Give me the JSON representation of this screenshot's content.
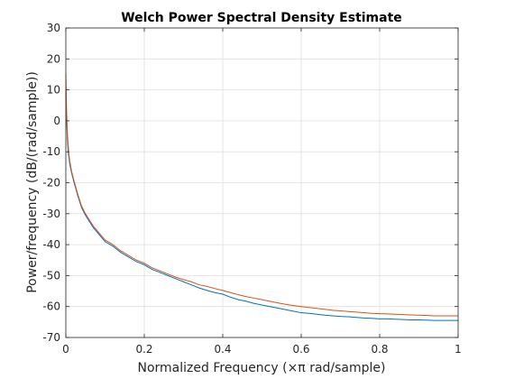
{
  "chart_data": {
    "type": "line",
    "title": "Welch Power Spectral Density Estimate",
    "xlabel": "Normalized Frequency  (×π rad/sample)",
    "ylabel": "Power/frequency (dB/(rad/sample))",
    "xlim": [
      0,
      1
    ],
    "ylim": [
      -70,
      30
    ],
    "xticks": [
      0,
      0.2,
      0.4,
      0.6,
      0.8,
      1
    ],
    "xtick_labels": [
      "0",
      "0.2",
      "0.4",
      "0.6",
      "0.8",
      "1"
    ],
    "yticks": [
      -70,
      -60,
      -50,
      -40,
      -30,
      -20,
      -10,
      0,
      10,
      20,
      30
    ],
    "ytick_labels": [
      "-70",
      "-60",
      "-50",
      "-40",
      "-30",
      "-20",
      "-10",
      "0",
      "10",
      "20",
      "30"
    ],
    "grid": true,
    "legend": "none",
    "series": [
      {
        "color": "#0072BD",
        "x": [
          0,
          0.002,
          0.004,
          0.006,
          0.008,
          0.01,
          0.015,
          0.02,
          0.03,
          0.04,
          0.05,
          0.06,
          0.07,
          0.08,
          0.09,
          0.1,
          0.12,
          0.14,
          0.16,
          0.18,
          0.2,
          0.22,
          0.24,
          0.26,
          0.28,
          0.3,
          0.32,
          0.34,
          0.36,
          0.38,
          0.4,
          0.42,
          0.44,
          0.46,
          0.48,
          0.5,
          0.52,
          0.54,
          0.56,
          0.58,
          0.6,
          0.62,
          0.64,
          0.66,
          0.68,
          0.7,
          0.72,
          0.74,
          0.76,
          0.78,
          0.8,
          0.82,
          0.84,
          0.86,
          0.88,
          0.9,
          0.92,
          0.94,
          0.96,
          0.98,
          1.0
        ],
        "y": [
          10,
          0,
          -6,
          -10,
          -12,
          -14,
          -17,
          -19.5,
          -24,
          -28,
          -30.5,
          -32.5,
          -34.5,
          -36,
          -37.5,
          -39,
          -40.5,
          -42.5,
          -44,
          -45.5,
          -46.5,
          -48,
          -49,
          -50,
          -51,
          -52,
          -53,
          -54,
          -54.8,
          -55.5,
          -56,
          -57,
          -57.8,
          -58.3,
          -59,
          -59.5,
          -60,
          -60.5,
          -61,
          -61.5,
          -62,
          -62.2,
          -62.5,
          -62.8,
          -63,
          -63.2,
          -63.3,
          -63.5,
          -63.7,
          -63.8,
          -64,
          -64,
          -64.1,
          -64.2,
          -64.3,
          -64.3,
          -64.4,
          -64.5,
          -64.5,
          -64.5,
          -64.5
        ]
      },
      {
        "color": "#D95319",
        "x": [
          0,
          0.002,
          0.004,
          0.006,
          0.008,
          0.01,
          0.015,
          0.02,
          0.03,
          0.04,
          0.05,
          0.06,
          0.07,
          0.08,
          0.09,
          0.1,
          0.12,
          0.14,
          0.16,
          0.18,
          0.2,
          0.22,
          0.24,
          0.26,
          0.28,
          0.3,
          0.32,
          0.34,
          0.36,
          0.38,
          0.4,
          0.42,
          0.44,
          0.46,
          0.48,
          0.5,
          0.52,
          0.54,
          0.56,
          0.58,
          0.6,
          0.62,
          0.64,
          0.66,
          0.68,
          0.7,
          0.72,
          0.74,
          0.76,
          0.78,
          0.8,
          0.82,
          0.84,
          0.86,
          0.88,
          0.9,
          0.92,
          0.94,
          0.96,
          0.98,
          1.0
        ],
        "y": [
          15,
          3,
          -4,
          -8,
          -11,
          -13,
          -16.5,
          -19,
          -23.5,
          -27.5,
          -30,
          -32,
          -34,
          -35.5,
          -37,
          -38.5,
          -40,
          -42,
          -43.5,
          -45,
          -46,
          -47.5,
          -48.5,
          -49.5,
          -50.5,
          -51.3,
          -52,
          -53,
          -53.5,
          -54.2,
          -54.8,
          -55.5,
          -56.2,
          -56.8,
          -57.3,
          -57.8,
          -58.3,
          -58.8,
          -59.3,
          -59.7,
          -60,
          -60.3,
          -60.6,
          -60.9,
          -61.2,
          -61.4,
          -61.6,
          -61.8,
          -62,
          -62.2,
          -62.3,
          -62.4,
          -62.5,
          -62.6,
          -62.7,
          -62.8,
          -62.9,
          -63,
          -63,
          -63,
          -63
        ]
      }
    ]
  }
}
